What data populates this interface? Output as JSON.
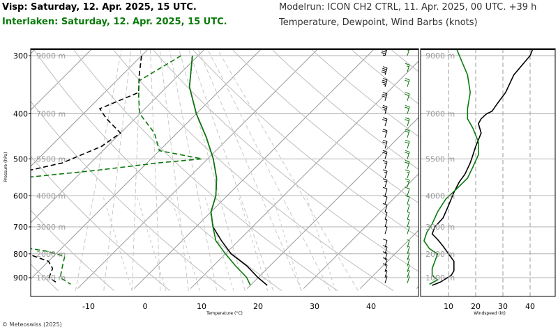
{
  "header": {
    "title_primary": "Visp: Saturday, 12. Apr. 2025, 15 UTC.",
    "title_secondary": "Interlaken: Saturday, 12. Apr. 2025, 15 UTC.",
    "modelrun": "Modelrun: ICON CH2 CTRL, 11. Apr. 2025, 00 UTC. +39 h",
    "variables": "Temperature, Dewpoint, Wind Barbs (knots)"
  },
  "footer": {
    "copyright": "© Meteoswiss (2025)"
  },
  "colors": {
    "primary": "#000000",
    "secondary": "#0a7a0a",
    "grid": "#a0a0a0"
  },
  "chart_data": [
    {
      "type": "line",
      "subtype": "skew-t",
      "xlabel": "Temperature (°C)",
      "ylabel": "Pressure (hPa)",
      "pressure_ticks": [
        300,
        400,
        500,
        600,
        700,
        800,
        900
      ],
      "temperature_ticks": [
        -10,
        0,
        10,
        20,
        30,
        40
      ],
      "temperature_tick_labels": [
        "-10",
        "0",
        "10",
        "20",
        "30",
        "40"
      ],
      "altitude_labels": [
        {
          "label": "9000 m",
          "p": 300
        },
        {
          "label": "7000 m",
          "p": 400
        },
        {
          "label": "5500 m",
          "p": 500
        },
        {
          "label": "4000 m",
          "p": 600
        },
        {
          "label": "3000 m",
          "p": 700
        },
        {
          "label": "2000 m",
          "p": 800
        },
        {
          "label": "1000 m",
          "p": 900
        }
      ],
      "series": [
        {
          "name": "Visp temperature",
          "color": "#000000",
          "dash": "solid",
          "points": [
            [
              300,
              -31
            ],
            [
              350,
              -26
            ],
            [
              400,
              -20
            ],
            [
              450,
              -14
            ],
            [
              500,
              -9
            ],
            [
              550,
              -5
            ],
            [
              600,
              -2
            ],
            [
              650,
              0
            ],
            [
              700,
              3
            ],
            [
              750,
              7
            ],
            [
              800,
              11
            ],
            [
              850,
              16
            ],
            [
              900,
              20
            ],
            [
              935,
              23
            ]
          ]
        },
        {
          "name": "Interlaken temperature",
          "color": "#0a7a0a",
          "dash": "solid",
          "points": [
            [
              300,
              -31
            ],
            [
              350,
              -26
            ],
            [
              400,
              -20
            ],
            [
              450,
              -14
            ],
            [
              500,
              -9
            ],
            [
              550,
              -5
            ],
            [
              600,
              -2
            ],
            [
              650,
              0
            ],
            [
              700,
              3
            ],
            [
              750,
              6
            ],
            [
              800,
              10
            ],
            [
              850,
              14
            ],
            [
              900,
              18
            ],
            [
              935,
              20
            ]
          ]
        },
        {
          "name": "Visp dewpoint",
          "color": "#000000",
          "dash": "dashed",
          "points": [
            [
              300,
              -40
            ],
            [
              330,
              -37
            ],
            [
              360,
              -34
            ],
            [
              390,
              -38
            ],
            [
              410,
              -35
            ],
            [
              440,
              -30
            ],
            [
              470,
              -31
            ],
            [
              510,
              -35
            ],
            [
              540,
              -42
            ],
            [
              570,
              -48
            ],
            [
              600,
              -51
            ],
            [
              620,
              -48
            ],
            [
              650,
              -40
            ],
            [
              680,
              -38
            ],
            [
              700,
              -35
            ],
            [
              730,
              -31
            ],
            [
              770,
              -28
            ],
            [
              800,
              -25
            ],
            [
              830,
              -20
            ],
            [
              860,
              -18
            ],
            [
              900,
              -17
            ],
            [
              920,
              -15
            ]
          ]
        },
        {
          "name": "Interlaken dewpoint",
          "color": "#0a7a0a",
          "dash": "dashed",
          "points": [
            [
              300,
              -33
            ],
            [
              340,
              -36
            ],
            [
              370,
              -33
            ],
            [
              400,
              -30
            ],
            [
              440,
              -24
            ],
            [
              480,
              -20
            ],
            [
              500,
              -11
            ],
            [
              510,
              -18
            ],
            [
              530,
              -28
            ],
            [
              550,
              -40
            ],
            [
              570,
              -50
            ],
            [
              600,
              -53
            ],
            [
              620,
              -50
            ],
            [
              650,
              -42
            ],
            [
              680,
              -40
            ],
            [
              700,
              -39
            ],
            [
              730,
              -38
            ],
            [
              760,
              -32
            ],
            [
              790,
              -22
            ],
            [
              810,
              -18
            ],
            [
              840,
              -17
            ],
            [
              870,
              -16
            ],
            [
              900,
              -15
            ],
            [
              930,
              -12
            ]
          ]
        }
      ]
    },
    {
      "type": "line",
      "xlabel": "Windspeed (kt)",
      "x_ticks": [
        10,
        20,
        30,
        40
      ],
      "x_tick_labels": [
        "10",
        "20",
        "30",
        "40"
      ],
      "altitude_labels": [
        {
          "label": "9000 m",
          "p": 300
        },
        {
          "label": "7000 m",
          "p": 400
        },
        {
          "label": "5500 m",
          "p": 500
        },
        {
          "label": "4000 m",
          "p": 600
        },
        {
          "label": "3000 m",
          "p": 700
        },
        {
          "label": "2000 m",
          "p": 800
        },
        {
          "label": "1000 m",
          "p": 900
        }
      ],
      "series": [
        {
          "name": "Visp windspeed",
          "color": "#000000",
          "points": [
            [
              290,
              41
            ],
            [
              300,
              40
            ],
            [
              330,
              34
            ],
            [
              360,
              31
            ],
            [
              380,
              28
            ],
            [
              395,
              26
            ],
            [
              400,
              24
            ],
            [
              410,
              22
            ],
            [
              420,
              21
            ],
            [
              440,
              22
            ],
            [
              455,
              21
            ],
            [
              470,
              20
            ],
            [
              490,
              19
            ],
            [
              510,
              18
            ],
            [
              540,
              16
            ],
            [
              560,
              14
            ],
            [
              590,
              12
            ],
            [
              630,
              10
            ],
            [
              670,
              8
            ],
            [
              700,
              5
            ],
            [
              725,
              4
            ],
            [
              745,
              6
            ],
            [
              770,
              8
            ],
            [
              800,
              10
            ],
            [
              830,
              12
            ],
            [
              855,
              12
            ],
            [
              870,
              12
            ],
            [
              890,
              11
            ],
            [
              905,
              9
            ],
            [
              920,
              7
            ],
            [
              935,
              4
            ]
          ]
        },
        {
          "name": "Interlaken windspeed",
          "color": "#0a7a0a",
          "points": [
            [
              290,
              13
            ],
            [
              300,
              14
            ],
            [
              330,
              17
            ],
            [
              360,
              18
            ],
            [
              390,
              17
            ],
            [
              410,
              17
            ],
            [
              430,
              19
            ],
            [
              460,
              21
            ],
            [
              490,
              21
            ],
            [
              520,
              19
            ],
            [
              550,
              17
            ],
            [
              580,
              13
            ],
            [
              610,
              9
            ],
            [
              650,
              6
            ],
            [
              690,
              4
            ],
            [
              720,
              2
            ],
            [
              750,
              1
            ],
            [
              780,
              3
            ],
            [
              800,
              6
            ],
            [
              830,
              5
            ],
            [
              860,
              4
            ],
            [
              890,
              4
            ],
            [
              910,
              6
            ],
            [
              930,
              3
            ]
          ]
        }
      ]
    }
  ],
  "wind_barbs": [
    {
      "name": "Visp",
      "color": "#000000",
      "barbs": [
        [
          300,
          45
        ],
        [
          330,
          40
        ],
        [
          350,
          35
        ],
        [
          375,
          30
        ],
        [
          400,
          25
        ],
        [
          425,
          20
        ],
        [
          450,
          20
        ],
        [
          475,
          20
        ],
        [
          500,
          20
        ],
        [
          525,
          15
        ],
        [
          550,
          15
        ],
        [
          575,
          15
        ],
        [
          600,
          10
        ],
        [
          625,
          10
        ],
        [
          650,
          10
        ],
        [
          675,
          5
        ],
        [
          700,
          5
        ],
        [
          725,
          5
        ],
        [
          775,
          10
        ],
        [
          800,
          10
        ],
        [
          825,
          10
        ],
        [
          850,
          10
        ],
        [
          875,
          10
        ],
        [
          900,
          5
        ],
        [
          925,
          5
        ]
      ]
    },
    {
      "name": "Interlaken",
      "color": "#0a7a0a",
      "barbs": [
        [
          300,
          15
        ],
        [
          325,
          15
        ],
        [
          350,
          20
        ],
        [
          375,
          20
        ],
        [
          400,
          20
        ],
        [
          425,
          20
        ],
        [
          450,
          20
        ],
        [
          475,
          20
        ],
        [
          500,
          20
        ],
        [
          525,
          20
        ],
        [
          550,
          15
        ],
        [
          575,
          15
        ],
        [
          600,
          10
        ],
        [
          625,
          10
        ],
        [
          650,
          5
        ],
        [
          675,
          5
        ],
        [
          700,
          5
        ],
        [
          725,
          5
        ],
        [
          775,
          5
        ],
        [
          800,
          5
        ],
        [
          825,
          5
        ],
        [
          850,
          5
        ],
        [
          875,
          5
        ],
        [
          900,
          5
        ],
        [
          925,
          5
        ]
      ]
    }
  ]
}
